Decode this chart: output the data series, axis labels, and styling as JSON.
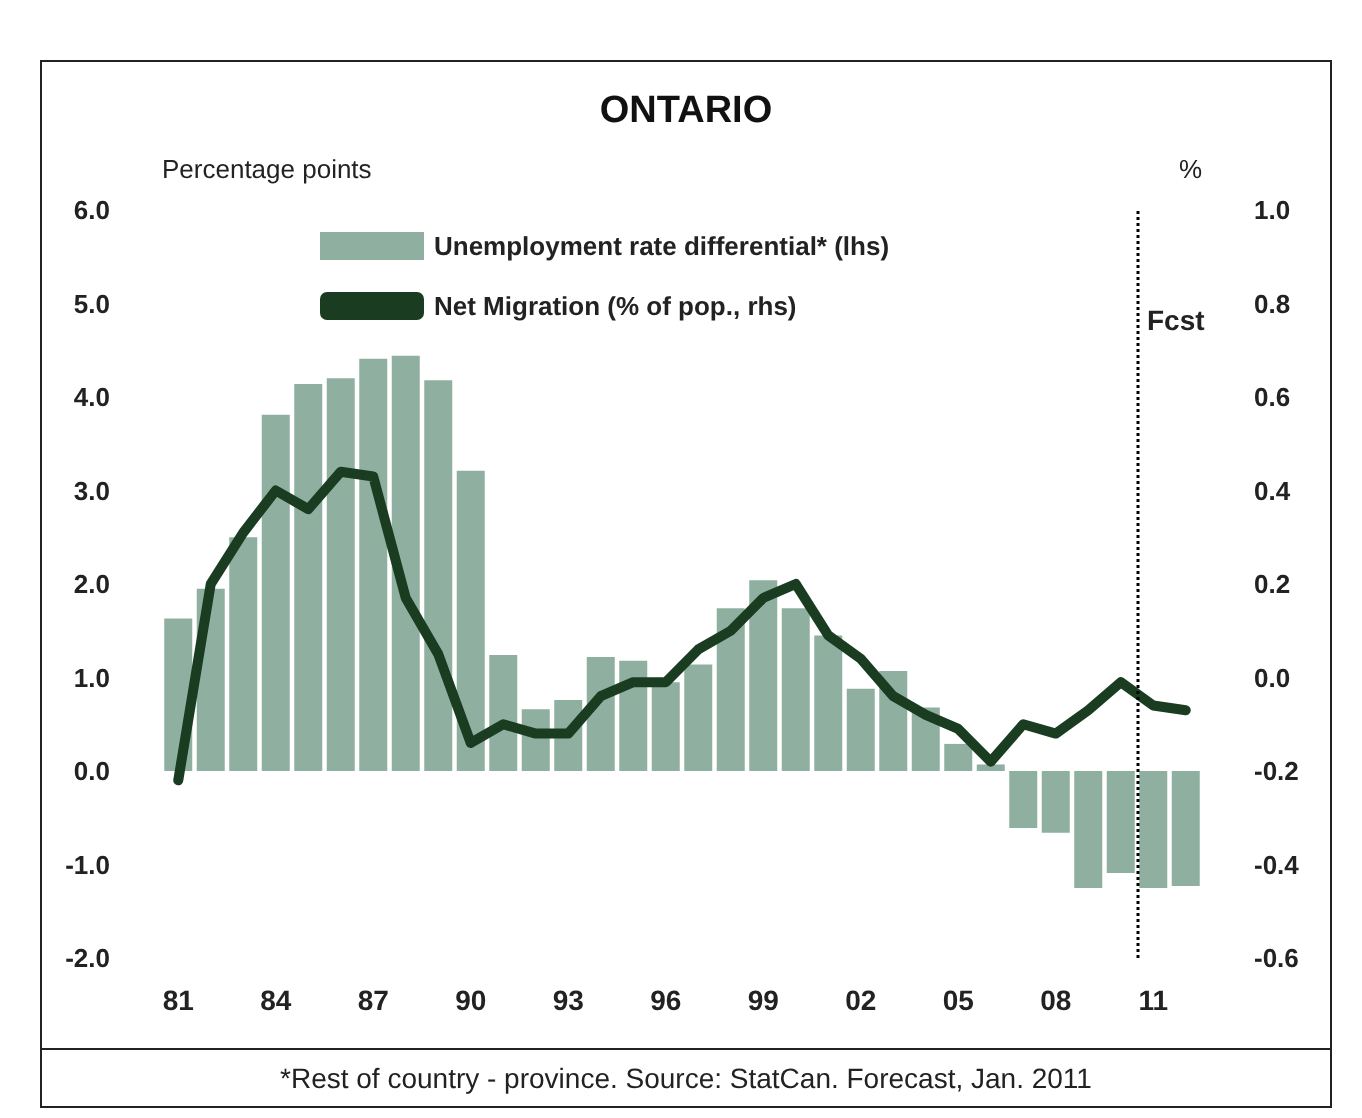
{
  "chart_data": {
    "type": "bar",
    "title": "ONTARIO",
    "ylabel": "Percentage points",
    "y2label": "%",
    "x": [
      1981,
      1982,
      1983,
      1984,
      1985,
      1986,
      1987,
      1988,
      1989,
      1990,
      1991,
      1992,
      1993,
      1994,
      1995,
      1996,
      1997,
      1998,
      1999,
      2000,
      2001,
      2002,
      2003,
      2004,
      2005,
      2006,
      2007,
      2008,
      2009,
      2010,
      2011,
      2012
    ],
    "xlim": [
      1980.5,
      2012.5
    ],
    "xticks": [
      {
        "value": 1981,
        "label": "81"
      },
      {
        "value": 1984,
        "label": "84"
      },
      {
        "value": 1987,
        "label": "87"
      },
      {
        "value": 1990,
        "label": "90"
      },
      {
        "value": 1993,
        "label": "93"
      },
      {
        "value": 1996,
        "label": "96"
      },
      {
        "value": 1999,
        "label": "99"
      },
      {
        "value": 2002,
        "label": "02"
      },
      {
        "value": 2005,
        "label": "05"
      },
      {
        "value": 2008,
        "label": "08"
      },
      {
        "value": 2011,
        "label": "11"
      }
    ],
    "series": [
      {
        "name": "Unemployment rate differential* (lhs)",
        "color": "#8fb0a0",
        "values": [
          1.63,
          1.95,
          2.5,
          3.81,
          4.14,
          4.2,
          4.41,
          4.44,
          4.18,
          3.21,
          1.24,
          0.66,
          0.76,
          1.22,
          1.18,
          0.95,
          1.14,
          1.74,
          2.04,
          1.74,
          1.45,
          0.88,
          1.07,
          0.68,
          0.29,
          0.07,
          -0.61,
          -0.66,
          -1.25,
          -1.09,
          -1.25,
          -1.23
        ]
      },
      {
        "name": "Net Migration (% of pop., rhs)",
        "type": "line",
        "axis": "y2",
        "color": "#1a3d22",
        "values": [
          -0.22,
          0.2,
          0.31,
          0.4,
          0.36,
          0.44,
          0.43,
          0.17,
          0.05,
          -0.14,
          -0.1,
          -0.12,
          -0.12,
          -0.04,
          -0.01,
          -0.01,
          0.06,
          0.1,
          0.17,
          0.2,
          0.09,
          0.04,
          -0.04,
          -0.08,
          -0.11,
          -0.18,
          -0.1,
          -0.12,
          -0.07,
          -0.01,
          -0.06,
          -0.07
        ]
      }
    ],
    "ylim": [
      -2,
      6
    ],
    "yticks": [
      {
        "value": -2,
        "label": "-2.0"
      },
      {
        "value": -1,
        "label": "-1.0"
      },
      {
        "value": 0,
        "label": "0.0"
      },
      {
        "value": 1,
        "label": "1.0"
      },
      {
        "value": 2,
        "label": "2.0"
      },
      {
        "value": 3,
        "label": "3.0"
      },
      {
        "value": 4,
        "label": "4.0"
      },
      {
        "value": 5,
        "label": "5.0"
      },
      {
        "value": 6,
        "label": "6.0"
      }
    ],
    "y2lim": [
      -0.6,
      1.0
    ],
    "y2ticks": [
      {
        "value": -0.6,
        "label": "-0.6"
      },
      {
        "value": -0.4,
        "label": "-0.4"
      },
      {
        "value": -0.2,
        "label": "-0.2"
      },
      {
        "value": 0,
        "label": "0.0"
      },
      {
        "value": 0.2,
        "label": "0.2"
      },
      {
        "value": 0.4,
        "label": "0.4"
      },
      {
        "value": 0.6,
        "label": "0.6"
      },
      {
        "value": 0.8,
        "label": "0.8"
      },
      {
        "value": 1.0,
        "label": "1.0"
      }
    ],
    "ref_lines": [
      {
        "axis": "x",
        "value": 2010.5,
        "label": "Fcst",
        "line_style": "dotted",
        "color": "#000000"
      }
    ],
    "annotations": [
      "*Rest of country - province. Source: StatCan. Forecast, Jan. 2011"
    ],
    "legend": "top",
    "grid": false,
    "marker": "none",
    "line_style": "solid"
  }
}
